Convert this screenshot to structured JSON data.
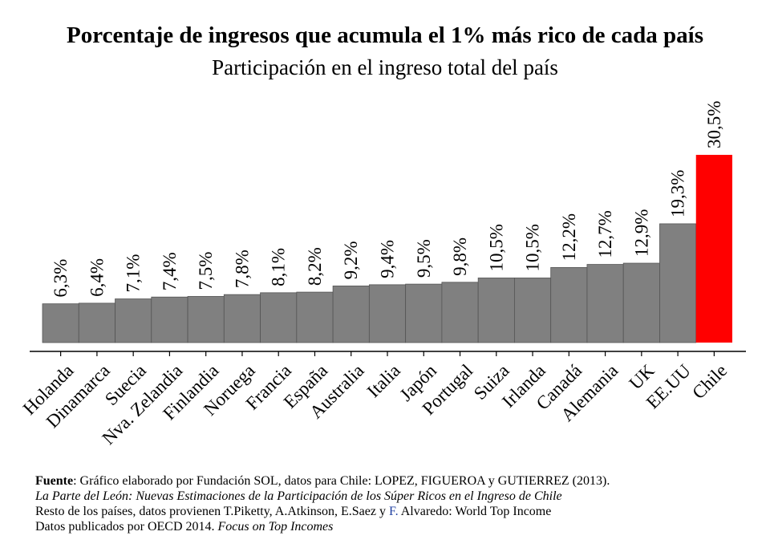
{
  "chart_data": {
    "type": "bar",
    "title": "Porcentaje de ingresos que acumula el 1% más rico de cada país",
    "subtitle": "Participación en el ingreso total del país",
    "xlabel": "",
    "ylabel": "",
    "ylim": [
      0,
      30.5
    ],
    "grid": false,
    "categories": [
      "Holanda",
      "Dinamarca",
      "Suecia",
      "Nva. Zelandia",
      "Finlandia",
      "Noruega",
      "Francia",
      "España",
      "Australia",
      "Italia",
      "Japón",
      "Portugal",
      "Suiza",
      "Irlanda",
      "Canadá",
      "Alemania",
      "UK",
      "EE.UU",
      "Chile"
    ],
    "values": [
      6.3,
      6.4,
      7.1,
      7.4,
      7.5,
      7.8,
      8.1,
      8.2,
      9.2,
      9.4,
      9.5,
      9.8,
      10.5,
      10.5,
      12.2,
      12.7,
      12.9,
      19.3,
      30.5
    ],
    "value_labels": [
      "6,3%",
      "6,4%",
      "7,1%",
      "7,4%",
      "7,5%",
      "7,8%",
      "8,1%",
      "8,2%",
      "9,2%",
      "9,4%",
      "9,5%",
      "9,8%",
      "10,5%",
      "10,5%",
      "12,2%",
      "12,7%",
      "12,9%",
      "19,3%",
      "30,5%"
    ],
    "colors": {
      "default": "#808080",
      "highlight": "#ff0000",
      "highlight_category": "Chile"
    }
  },
  "source": {
    "label": "Fuente",
    "line1_rest": ": Gráfico elaborado por Fundación SOL, datos para Chile: LOPEZ, FIGUEROA y GUTIERREZ (2013).",
    "line2": "La Parte del León: Nuevas Estimaciones de la Participación de los Súper Ricos en el Ingreso de Chile",
    "line3_a": "Resto de los países, datos provienen T.Piketty, A.Atkinson, E.Saez y ",
    "line3_b": "F.",
    "line3_c": " Alvaredo: World Top Income",
    "line4_a": "Datos publicados por OECD 2014. ",
    "line4_b": "Focus on Top Incomes"
  }
}
